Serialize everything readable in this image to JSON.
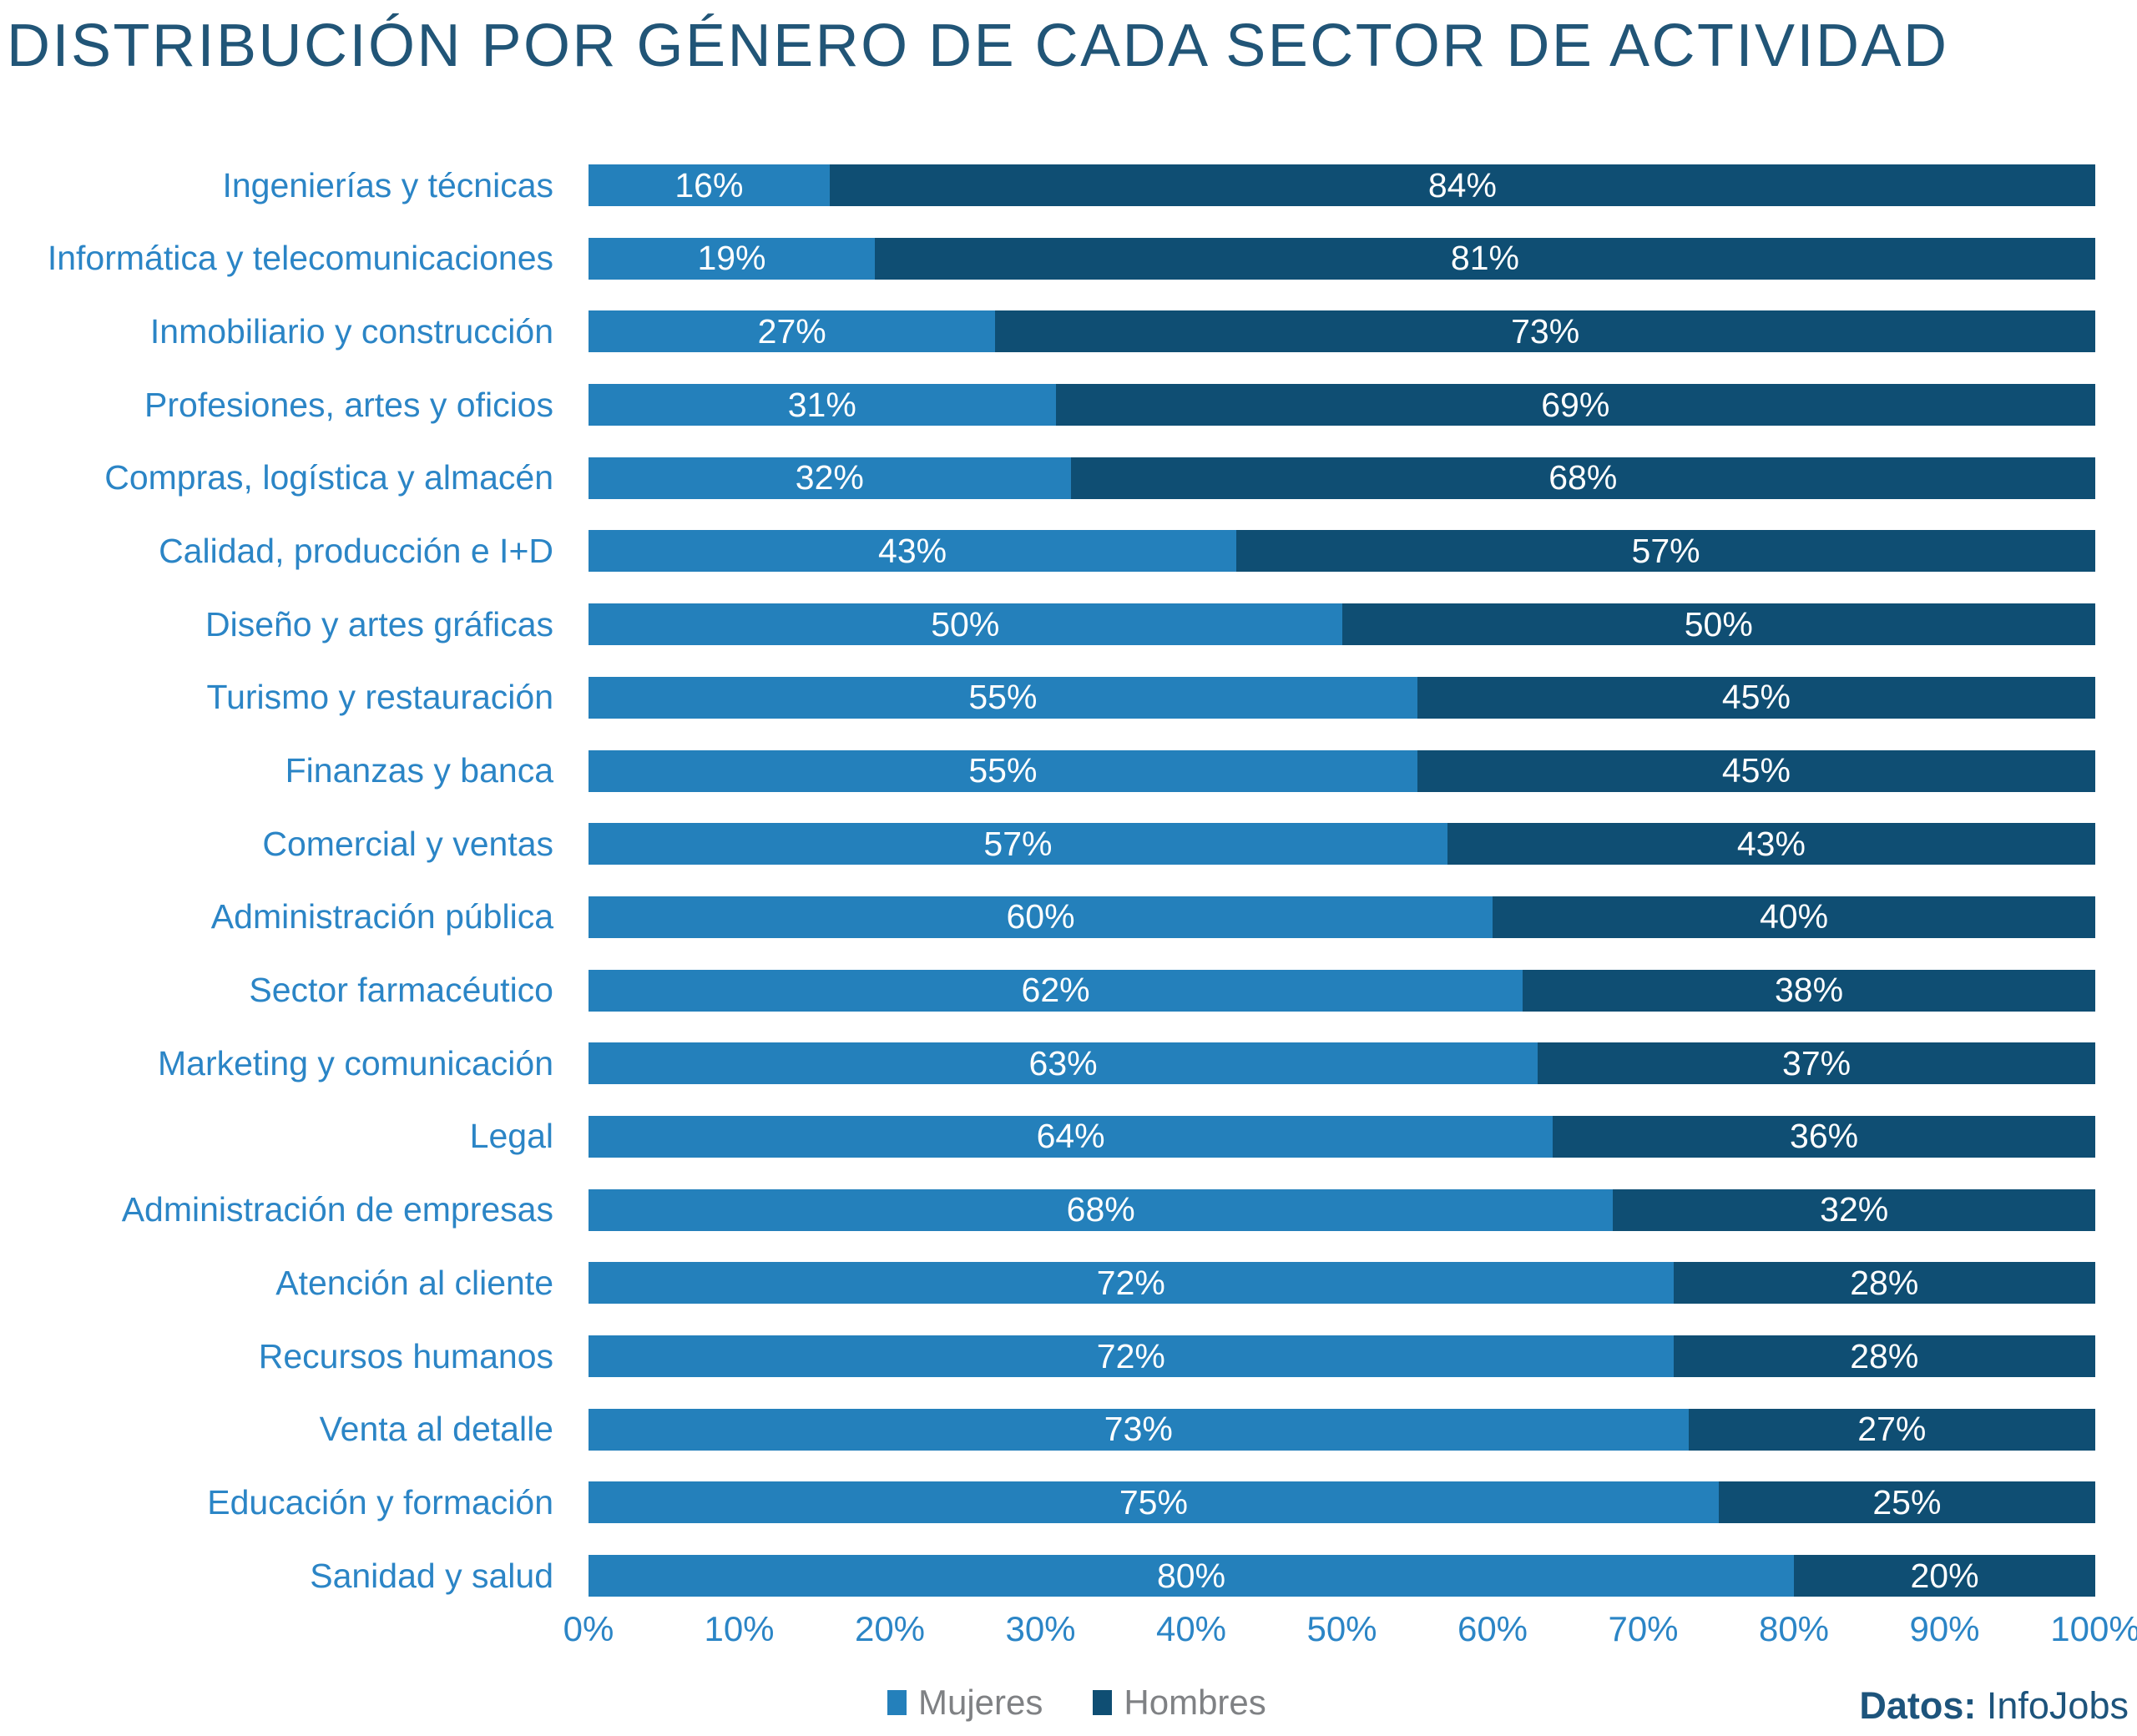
{
  "title": "DISTRIBUCIÓN POR GÉNERO DE CADA SECTOR DE ACTIVIDAD",
  "source": {
    "label": "Datos:",
    "value": "InfoJobs"
  },
  "legend": {
    "items": [
      {
        "label": "Mujeres",
        "color": "#2480bb"
      },
      {
        "label": "Hombres",
        "color": "#0f4e73"
      }
    ]
  },
  "colors": {
    "mujeres": "#2480bb",
    "hombres": "#0f4e73",
    "axis_text": "#2b85c6",
    "title_text": "#215577",
    "legend_text": "#7f8184"
  },
  "chart_data": {
    "type": "bar",
    "orientation": "horizontal",
    "stacked": true,
    "title": "DISTRIBUCIÓN POR GÉNERO DE CADA SECTOR DE ACTIVIDAD",
    "categories": [
      "Ingenierías y técnicas",
      "Informática y telecomunicaciones",
      "Inmobiliario y construcción",
      "Profesiones, artes y oficios",
      "Compras, logística y almacén",
      "Calidad, producción e I+D",
      "Diseño y artes gráficas",
      "Turismo y restauración",
      "Finanzas y banca",
      "Comercial y ventas",
      "Administración pública",
      "Sector farmacéutico",
      "Marketing y comunicación",
      "Legal",
      "Administración de empresas",
      "Atención al cliente",
      "Recursos humanos",
      "Venta al detalle",
      "Educación y formación",
      "Sanidad y salud"
    ],
    "series": [
      {
        "name": "Mujeres",
        "color": "#2480bb",
        "values": [
          16,
          19,
          27,
          31,
          32,
          43,
          50,
          55,
          55,
          57,
          60,
          62,
          63,
          64,
          68,
          72,
          72,
          73,
          75,
          80
        ]
      },
      {
        "name": "Hombres",
        "color": "#0f4e73",
        "values": [
          84,
          81,
          73,
          69,
          68,
          57,
          50,
          45,
          45,
          43,
          40,
          38,
          37,
          36,
          32,
          28,
          28,
          27,
          25,
          20
        ]
      }
    ],
    "value_suffix": "%",
    "xlim": [
      0,
      100
    ],
    "x_ticks": [
      "0%",
      "10%",
      "20%",
      "30%",
      "40%",
      "50%",
      "60%",
      "70%",
      "80%",
      "90%",
      "100%"
    ],
    "grid": false,
    "legend_position": "bottom"
  }
}
